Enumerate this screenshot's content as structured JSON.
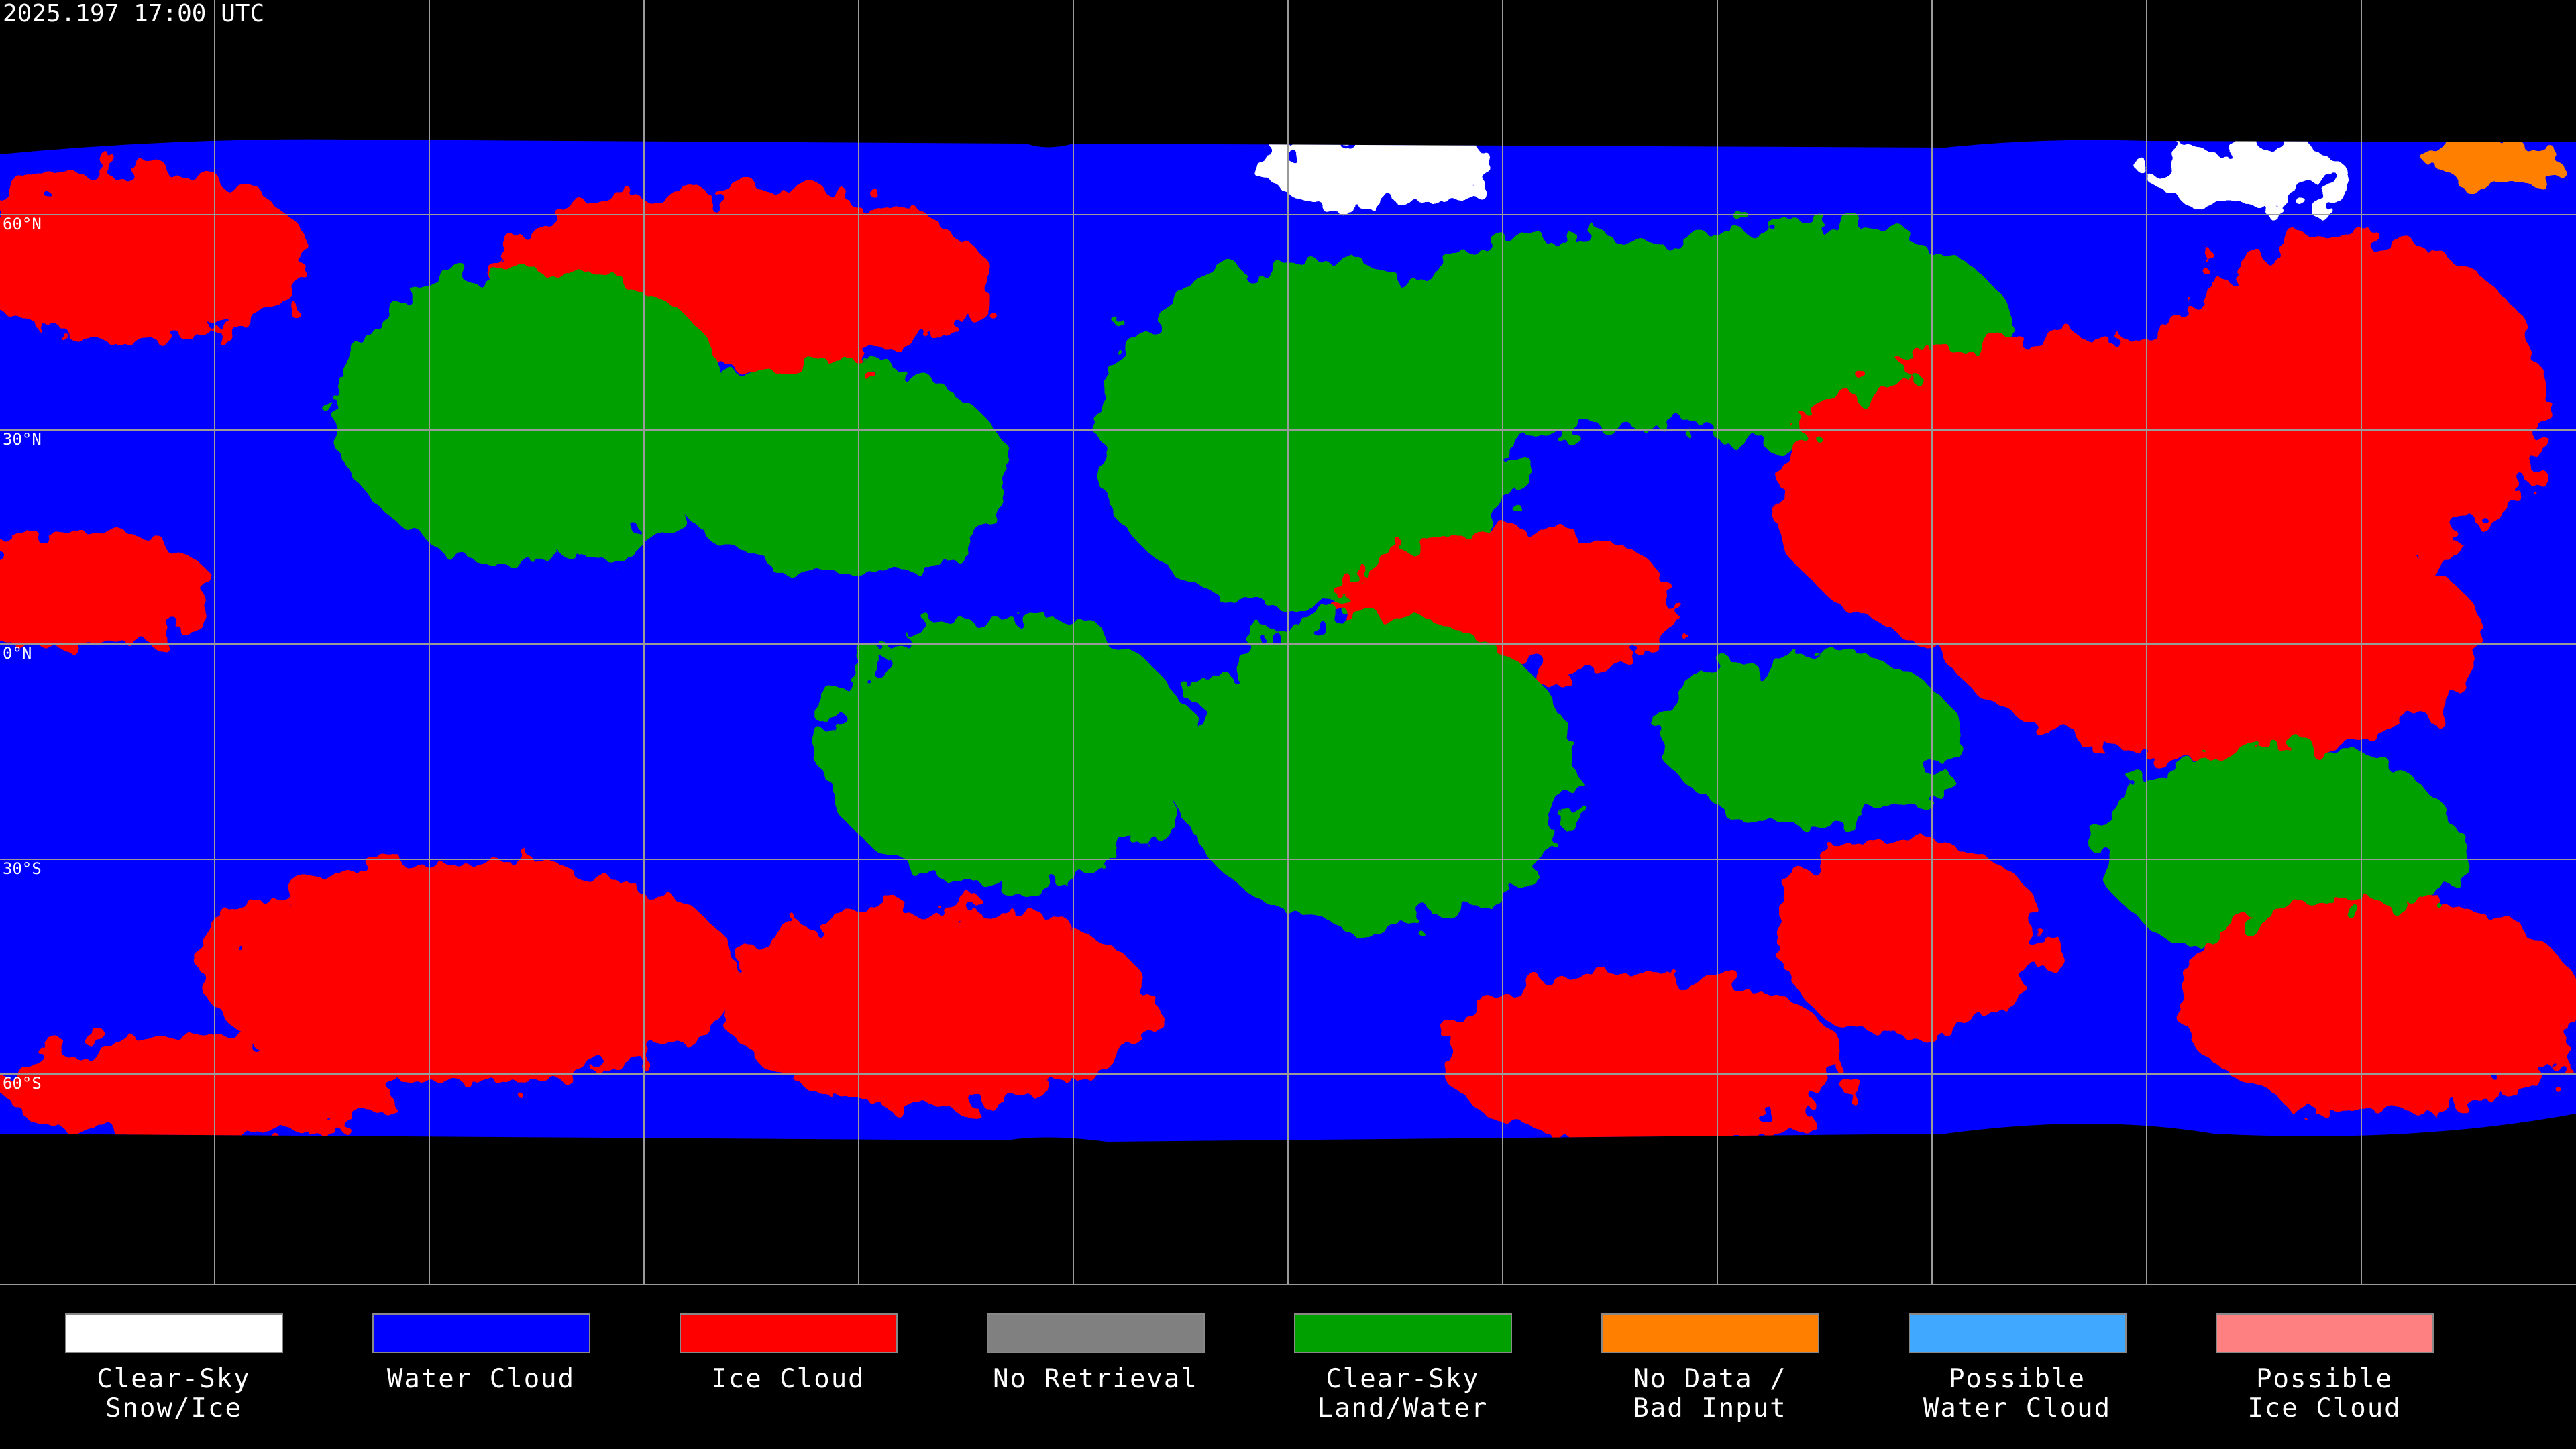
{
  "timestamp": "2025.197 17:00 UTC",
  "lat_labels": [
    "60°N",
    "30°N",
    "0°N",
    "30°S",
    "60°S"
  ],
  "legend": [
    {
      "lines": [
        "Clear-Sky",
        "Snow/Ice"
      ],
      "color": "#ffffff"
    },
    {
      "lines": [
        "Water Cloud"
      ],
      "color": "#0000ff"
    },
    {
      "lines": [
        "Ice Cloud"
      ],
      "color": "#ff0000"
    },
    {
      "lines": [
        "No Retrieval"
      ],
      "color": "#808080"
    },
    {
      "lines": [
        "Clear-Sky",
        "Land/Water"
      ],
      "color": "#00a000"
    },
    {
      "lines": [
        "No Data /",
        "Bad Input"
      ],
      "color": "#ff8000"
    },
    {
      "lines": [
        "Possible",
        "Water Cloud"
      ],
      "color": "#40a8ff"
    },
    {
      "lines": [
        "Possible",
        "Ice Cloud"
      ],
      "color": "#ff8080"
    }
  ]
}
